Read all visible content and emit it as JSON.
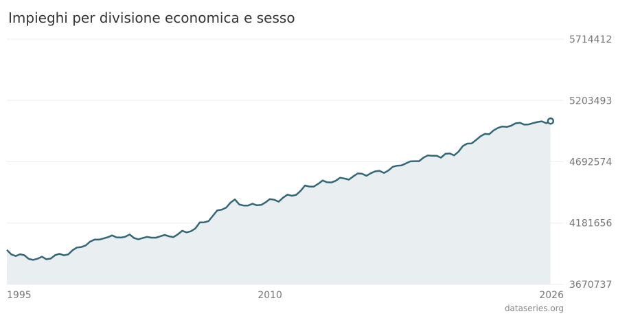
{
  "colors": {
    "line": "#336677",
    "area": "#e9eef1",
    "grid": "#eeeeee"
  },
  "chart_data": {
    "type": "area",
    "title": "Impieghi per divisione economica e sesso",
    "xlabel": "",
    "ylabel": "",
    "ylim": [
      3670737,
      5714412
    ],
    "xlim": [
      1995,
      2026.75
    ],
    "yticks": [
      "5714412",
      "5203493",
      "4692574",
      "4181656",
      "3670737"
    ],
    "ytick_values": [
      5714412,
      5203493,
      4692574,
      4181656,
      3670737
    ],
    "xticks": [
      "1995",
      "2010",
      "2026"
    ],
    "xtick_values": [
      1995,
      2010,
      2026
    ],
    "grid": true,
    "source": "dataseries.org",
    "series": [
      {
        "values": [
          [
            1995.0,
            3958000
          ],
          [
            1995.25,
            3921000
          ],
          [
            1995.5,
            3907000
          ],
          [
            1995.75,
            3922000
          ],
          [
            1996.0,
            3914000
          ],
          [
            1996.25,
            3883000
          ],
          [
            1996.5,
            3875000
          ],
          [
            1996.75,
            3885000
          ],
          [
            1997.0,
            3902000
          ],
          [
            1997.25,
            3880000
          ],
          [
            1997.5,
            3886000
          ],
          [
            1997.75,
            3914000
          ],
          [
            1998.0,
            3926000
          ],
          [
            1998.25,
            3913000
          ],
          [
            1998.5,
            3921000
          ],
          [
            1998.75,
            3956000
          ],
          [
            1999.0,
            3979000
          ],
          [
            1999.25,
            3982000
          ],
          [
            1999.5,
            3996000
          ],
          [
            1999.75,
            4028000
          ],
          [
            2000.0,
            4044000
          ],
          [
            2000.25,
            4044000
          ],
          [
            2000.5,
            4053000
          ],
          [
            2000.75,
            4064000
          ],
          [
            2001.0,
            4079000
          ],
          [
            2001.25,
            4063000
          ],
          [
            2001.5,
            4061000
          ],
          [
            2001.75,
            4068000
          ],
          [
            2002.0,
            4087000
          ],
          [
            2002.25,
            4057000
          ],
          [
            2002.5,
            4047000
          ],
          [
            2002.75,
            4058000
          ],
          [
            2003.0,
            4067000
          ],
          [
            2003.25,
            4060000
          ],
          [
            2003.5,
            4060000
          ],
          [
            2003.75,
            4072000
          ],
          [
            2004.0,
            4083000
          ],
          [
            2004.25,
            4071000
          ],
          [
            2004.5,
            4065000
          ],
          [
            2004.75,
            4088000
          ],
          [
            2005.0,
            4118000
          ],
          [
            2005.25,
            4104000
          ],
          [
            2005.5,
            4114000
          ],
          [
            2005.75,
            4138000
          ],
          [
            2006.0,
            4187000
          ],
          [
            2006.25,
            4188000
          ],
          [
            2006.5,
            4198000
          ],
          [
            2006.75,
            4243000
          ],
          [
            2007.0,
            4288000
          ],
          [
            2007.25,
            4293000
          ],
          [
            2007.5,
            4310000
          ],
          [
            2007.75,
            4352000
          ],
          [
            2008.0,
            4379000
          ],
          [
            2008.25,
            4337000
          ],
          [
            2008.5,
            4328000
          ],
          [
            2008.75,
            4328000
          ],
          [
            2009.0,
            4343000
          ],
          [
            2009.25,
            4330000
          ],
          [
            2009.5,
            4333000
          ],
          [
            2009.75,
            4355000
          ],
          [
            2010.0,
            4382000
          ],
          [
            2010.25,
            4376000
          ],
          [
            2010.5,
            4360000
          ],
          [
            2010.75,
            4394000
          ],
          [
            2011.0,
            4419000
          ],
          [
            2011.25,
            4409000
          ],
          [
            2011.5,
            4417000
          ],
          [
            2011.75,
            4451000
          ],
          [
            2012.0,
            4495000
          ],
          [
            2012.25,
            4486000
          ],
          [
            2012.5,
            4486000
          ],
          [
            2012.75,
            4509000
          ],
          [
            2013.0,
            4537000
          ],
          [
            2013.25,
            4522000
          ],
          [
            2013.5,
            4520000
          ],
          [
            2013.75,
            4534000
          ],
          [
            2014.0,
            4560000
          ],
          [
            2014.25,
            4553000
          ],
          [
            2014.5,
            4544000
          ],
          [
            2014.75,
            4571000
          ],
          [
            2015.0,
            4595000
          ],
          [
            2015.25,
            4593000
          ],
          [
            2015.5,
            4576000
          ],
          [
            2015.75,
            4597000
          ],
          [
            2016.0,
            4613000
          ],
          [
            2016.25,
            4617000
          ],
          [
            2016.5,
            4599000
          ],
          [
            2016.75,
            4620000
          ],
          [
            2017.0,
            4651000
          ],
          [
            2017.25,
            4660000
          ],
          [
            2017.5,
            4662000
          ],
          [
            2017.75,
            4679000
          ],
          [
            2018.0,
            4696000
          ],
          [
            2018.25,
            4698000
          ],
          [
            2018.5,
            4698000
          ],
          [
            2018.75,
            4727000
          ],
          [
            2019.0,
            4746000
          ],
          [
            2019.25,
            4743000
          ],
          [
            2019.5,
            4743000
          ],
          [
            2019.75,
            4727000
          ],
          [
            2020.0,
            4759000
          ],
          [
            2020.25,
            4762000
          ],
          [
            2020.5,
            4746000
          ],
          [
            2020.75,
            4777000
          ],
          [
            2021.0,
            4824000
          ],
          [
            2021.25,
            4844000
          ],
          [
            2021.5,
            4846000
          ],
          [
            2021.75,
            4874000
          ],
          [
            2022.0,
            4905000
          ],
          [
            2022.25,
            4925000
          ],
          [
            2022.5,
            4922000
          ],
          [
            2022.75,
            4954000
          ],
          [
            2023.0,
            4975000
          ],
          [
            2023.25,
            4987000
          ],
          [
            2023.5,
            4983000
          ],
          [
            2023.75,
            4993000
          ],
          [
            2024.0,
            5013000
          ],
          [
            2024.25,
            5018000
          ],
          [
            2024.5,
            5002000
          ],
          [
            2024.75,
            5004000
          ],
          [
            2025.0,
            5015000
          ],
          [
            2025.25,
            5024000
          ],
          [
            2025.5,
            5030000
          ],
          [
            2025.75,
            5014000
          ],
          [
            2026.0,
            5032000
          ]
        ]
      }
    ]
  }
}
